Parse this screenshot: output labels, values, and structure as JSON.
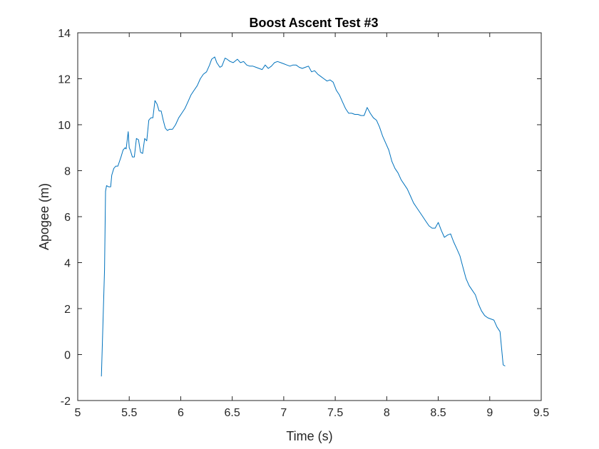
{
  "chart_data": {
    "type": "line",
    "title": "Boost Ascent Test #3",
    "xlabel": "Time (s)",
    "ylabel": "Apogee (m)",
    "xlim": [
      5,
      9.5
    ],
    "ylim": [
      -2,
      14
    ],
    "xticks": [
      "5",
      "5.5",
      "6",
      "6.5",
      "7",
      "7.5",
      "8",
      "8.5",
      "9",
      "9.5"
    ],
    "yticks": [
      "-2",
      "0",
      "2",
      "4",
      "6",
      "8",
      "10",
      "12",
      "14"
    ],
    "grid": false,
    "legend": "none",
    "series_color": "#0072BD",
    "series": [
      {
        "x": [
          5.23,
          5.26,
          5.27,
          5.28,
          5.3,
          5.32,
          5.33,
          5.35,
          5.37,
          5.39,
          5.42,
          5.44,
          5.46,
          5.47,
          5.49,
          5.5,
          5.51,
          5.53,
          5.55,
          5.57,
          5.59,
          5.61,
          5.63,
          5.65,
          5.67,
          5.69,
          5.71,
          5.73,
          5.75,
          5.77,
          5.79,
          5.81,
          5.83,
          5.85,
          5.87,
          5.89,
          5.92,
          5.95,
          5.98,
          6.01,
          6.04,
          6.07,
          6.1,
          6.13,
          6.16,
          6.19,
          6.22,
          6.25,
          6.28,
          6.3,
          6.33,
          6.35,
          6.38,
          6.4,
          6.43,
          6.45,
          6.48,
          6.51,
          6.55,
          6.58,
          6.61,
          6.64,
          6.67,
          6.7,
          6.73,
          6.76,
          6.79,
          6.82,
          6.85,
          6.88,
          6.91,
          6.94,
          6.97,
          7.0,
          7.03,
          7.06,
          7.09,
          7.12,
          7.15,
          7.18,
          7.21,
          7.24,
          7.27,
          7.3,
          7.33,
          7.36,
          7.39,
          7.42,
          7.45,
          7.48,
          7.51,
          7.54,
          7.57,
          7.6,
          7.63,
          7.66,
          7.69,
          7.72,
          7.75,
          7.78,
          7.81,
          7.84,
          7.87,
          7.9,
          7.93,
          7.96,
          7.99,
          8.02,
          8.05,
          8.08,
          8.11,
          8.14,
          8.17,
          8.2,
          8.23,
          8.26,
          8.29,
          8.32,
          8.35,
          8.38,
          8.41,
          8.44,
          8.47,
          8.5,
          8.53,
          8.56,
          8.59,
          8.62,
          8.65,
          8.68,
          8.71,
          8.74,
          8.77,
          8.8,
          8.83,
          8.86,
          8.89,
          8.92,
          8.95,
          8.98,
          9.01,
          9.04,
          9.07,
          9.1,
          9.13,
          9.15
        ],
        "y": [
          -0.95,
          3.7,
          7.1,
          7.35,
          7.3,
          7.3,
          7.8,
          8.1,
          8.2,
          8.2,
          8.6,
          8.9,
          9.0,
          8.95,
          9.7,
          9.0,
          8.9,
          8.6,
          8.6,
          9.4,
          9.35,
          8.8,
          8.75,
          9.4,
          9.3,
          10.2,
          10.3,
          10.3,
          11.05,
          10.9,
          10.6,
          10.6,
          10.2,
          9.85,
          9.75,
          9.8,
          9.8,
          10.0,
          10.3,
          10.5,
          10.7,
          11.0,
          11.3,
          11.5,
          11.7,
          12.0,
          12.2,
          12.3,
          12.6,
          12.85,
          12.95,
          12.7,
          12.5,
          12.55,
          12.9,
          12.85,
          12.75,
          12.7,
          12.85,
          12.7,
          12.75,
          12.6,
          12.55,
          12.55,
          12.5,
          12.45,
          12.4,
          12.6,
          12.45,
          12.55,
          12.7,
          12.75,
          12.7,
          12.65,
          12.6,
          12.55,
          12.6,
          12.6,
          12.5,
          12.45,
          12.5,
          12.55,
          12.3,
          12.35,
          12.2,
          12.1,
          12.0,
          11.9,
          11.95,
          11.85,
          11.5,
          11.3,
          11.0,
          10.7,
          10.5,
          10.5,
          10.45,
          10.45,
          10.4,
          10.4,
          10.75,
          10.5,
          10.3,
          10.2,
          9.9,
          9.5,
          9.2,
          8.9,
          8.4,
          8.1,
          7.9,
          7.6,
          7.4,
          7.2,
          6.9,
          6.6,
          6.4,
          6.2,
          6.0,
          5.8,
          5.6,
          5.5,
          5.5,
          5.75,
          5.4,
          5.1,
          5.2,
          5.25,
          4.9,
          4.6,
          4.3,
          3.8,
          3.3,
          3.0,
          2.8,
          2.6,
          2.2,
          1.9,
          1.7,
          1.6,
          1.55,
          1.5,
          1.2,
          1.0,
          -0.45,
          -0.5
        ]
      }
    ]
  }
}
